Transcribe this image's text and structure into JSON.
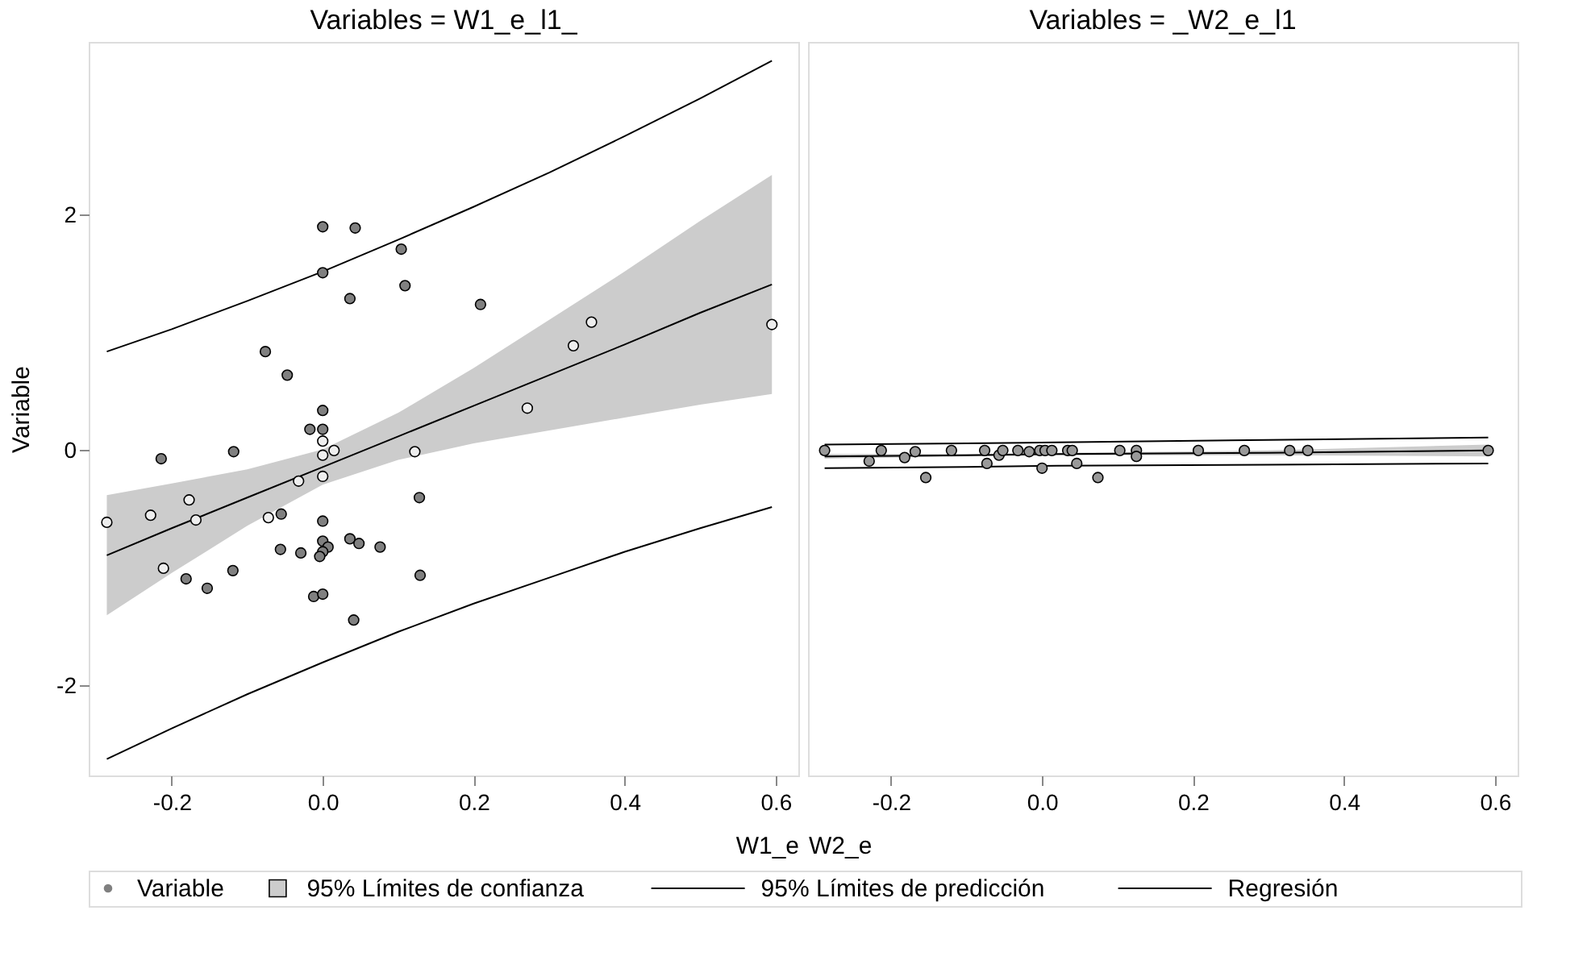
{
  "chart_data": [
    {
      "type": "scatter",
      "title": "Variables = W1_e_l1_",
      "xlabel": "W1_e",
      "ylabel": "Variable",
      "xlim": [
        -0.31,
        0.63
      ],
      "ylim": [
        -2.76,
        3.47
      ],
      "xticks": [
        -0.2,
        {
          "value": 0,
          "label": "0.0"
        },
        0.2,
        0.4,
        0.6
      ],
      "yticks": [
        -2,
        0,
        2
      ],
      "grid": false,
      "legend": "bottom",
      "annotations": [
        "95% Límites de confianza"
      ],
      "series": [
        {
          "name": "Variable",
          "marker": "circle",
          "color": "#808080",
          "x": [
            0.0,
            0.043,
            0.104,
            0.0,
            0.109,
            0.036,
            0.209,
            0.356,
            0.595,
            0.332,
            -0.076,
            -0.047,
            0.271,
            0.0,
            -0.017,
            0.0,
            0.0,
            -0.214,
            -0.118,
            0.0,
            0.015,
            0.122,
            -0.032,
            0.0,
            -0.177,
            -0.286,
            -0.228,
            -0.168,
            -0.072,
            -0.055,
            0.128,
            0.0,
            0.036,
            0.048,
            0.076,
            0.0,
            0.007,
            0.0,
            -0.004,
            -0.056,
            -0.029,
            -0.211,
            -0.119,
            -0.181,
            -0.153,
            0.129,
            -0.012,
            0.0,
            0.041
          ],
          "values": [
            1.9,
            1.89,
            1.71,
            1.51,
            1.4,
            1.29,
            1.24,
            1.09,
            1.07,
            0.89,
            0.84,
            0.64,
            0.36,
            0.34,
            0.18,
            0.18,
            0.08,
            -0.07,
            -0.01,
            -0.04,
            0.0,
            -0.01,
            -0.26,
            -0.22,
            -0.42,
            -0.61,
            -0.55,
            -0.59,
            -0.57,
            -0.54,
            -0.4,
            -0.6,
            -0.75,
            -0.79,
            -0.82,
            -0.77,
            -0.82,
            -0.86,
            -0.9,
            -0.84,
            -0.87,
            -1.0,
            -1.02,
            -1.09,
            -1.17,
            -1.06,
            -1.24,
            -1.22,
            -1.44
          ],
          "colors": [
            "#808080",
            "#808080",
            "#808080",
            "#808080",
            "#808080",
            "#808080",
            "#808080",
            "#eeeeee",
            "#eeeeee",
            "#eeeeee",
            "#808080",
            "#808080",
            "#eeeeee",
            "#808080",
            "#808080",
            "#808080",
            "#eeeeee",
            "#808080",
            "#808080",
            "#eeeeee",
            "#eeeeee",
            "#eeeeee",
            "#eeeeee",
            "#eeeeee",
            "#eeeeee",
            "#eeeeee",
            "#eeeeee",
            "#eeeeee",
            "#eeeeee",
            "#808080",
            "#808080",
            "#808080",
            "#808080",
            "#808080",
            "#808080",
            "#808080",
            "#808080",
            "#808080",
            "#808080",
            "#808080",
            "#808080",
            "#eeeeee",
            "#808080",
            "#808080",
            "#808080",
            "#808080",
            "#808080",
            "#808080",
            "#808080"
          ]
        },
        {
          "name": "95% Límites de predicción",
          "type": "line",
          "marker": "none",
          "color": "#000000",
          "x": [
            -0.286,
            -0.2,
            -0.1,
            0.0,
            0.1,
            0.2,
            0.3,
            0.4,
            0.5,
            0.595
          ],
          "values": [
            0.84,
            1.03,
            1.27,
            1.52,
            1.79,
            2.07,
            2.36,
            2.67,
            2.99,
            3.31
          ]
        },
        {
          "type": "line",
          "marker": "none",
          "color": "#000000",
          "x": [
            -0.286,
            -0.2,
            -0.1,
            0.0,
            0.1,
            0.2,
            0.3,
            0.4,
            0.5,
            0.595
          ],
          "values": [
            -2.62,
            -2.36,
            -2.07,
            -1.8,
            -1.54,
            -1.3,
            -1.08,
            -0.86,
            -0.66,
            -0.48
          ]
        },
        {
          "name": "Regresión",
          "type": "line",
          "marker": "none",
          "color": "#000000",
          "x": [
            -0.286,
            -0.2,
            -0.1,
            0.0,
            0.1,
            0.2,
            0.3,
            0.4,
            0.5,
            0.595
          ],
          "values": [
            -0.89,
            -0.66,
            -0.4,
            -0.14,
            0.12,
            0.38,
            0.64,
            0.9,
            1.17,
            1.41
          ],
          "upper": [
            -0.38,
            -0.28,
            -0.16,
            0.01,
            0.32,
            0.7,
            1.11,
            1.52,
            1.95,
            2.34
          ],
          "lower": [
            -1.4,
            -1.04,
            -0.64,
            -0.29,
            -0.08,
            0.06,
            0.17,
            0.28,
            0.39,
            0.48
          ]
        }
      ]
    },
    {
      "type": "scatter",
      "title": "Variables = _W2_e_l1",
      "xlabel": "W2_e",
      "xlim": [
        -0.31,
        0.63
      ],
      "ylim": [
        -2.76,
        3.47
      ],
      "xticks": [
        -0.2,
        {
          "value": 0,
          "label": "0.0"
        },
        0.2,
        0.4,
        0.6
      ],
      "yticks": [
        -2,
        0,
        2
      ],
      "grid": false,
      "tick_labels": "x",
      "series": [
        {
          "marker": "circle",
          "color": "#999999",
          "x": [
            -0.288,
            -0.229,
            -0.213,
            -0.182,
            -0.168,
            -0.154,
            -0.12,
            -0.076,
            -0.073,
            -0.057,
            -0.052,
            -0.032,
            -0.017,
            -0.003,
            0.0,
            0.004,
            0.013,
            0.034,
            0.04,
            0.046,
            0.074,
            0.103,
            0.125,
            0.125,
            0.207,
            0.268,
            0.328,
            0.352,
            0.591
          ],
          "values": [
            0.0,
            -0.09,
            0.0,
            -0.06,
            -0.01,
            -0.23,
            0.0,
            0.0,
            -0.11,
            -0.04,
            0.0,
            0.0,
            -0.01,
            0.0,
            -0.15,
            0.0,
            0.0,
            0.0,
            0.0,
            -0.11,
            -0.23,
            0.0,
            0.0,
            -0.05,
            0.0,
            0.0,
            0.0,
            0.0,
            0.0
          ]
        },
        {
          "type": "line",
          "marker": "none",
          "color": "#000000",
          "x": [
            -0.288,
            -0.1,
            0.02,
            0.3,
            0.591
          ],
          "values": [
            0.05,
            0.06,
            0.07,
            0.09,
            0.11
          ]
        },
        {
          "type": "line",
          "marker": "none",
          "color": "#000000",
          "x": [
            -0.288,
            -0.1,
            0.02,
            0.3,
            0.591
          ],
          "values": [
            -0.15,
            -0.14,
            -0.13,
            -0.12,
            -0.11
          ]
        },
        {
          "type": "line",
          "marker": "none",
          "color": "#000000",
          "x": [
            -0.288,
            -0.1,
            0.02,
            0.3,
            0.591
          ],
          "values": [
            -0.05,
            -0.04,
            -0.03,
            -0.02,
            0.0
          ],
          "upper": [
            -0.03,
            -0.03,
            -0.02,
            0.0,
            0.05
          ],
          "lower": [
            -0.07,
            -0.05,
            -0.04,
            -0.04,
            -0.05
          ]
        }
      ]
    }
  ]
}
